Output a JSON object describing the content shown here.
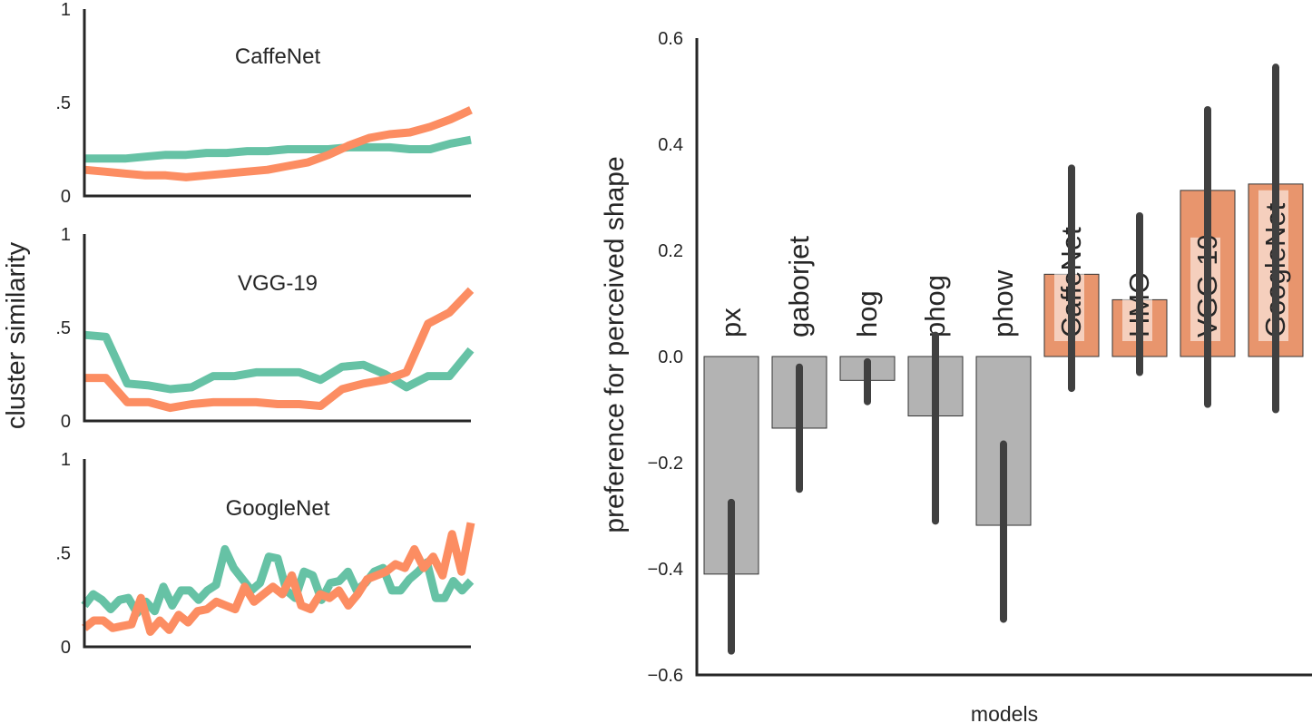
{
  "colors": {
    "green": "#66c2a5",
    "orange": "#fc8d62",
    "gray": "#b3b3b3",
    "barOrange": "#e8956d",
    "errorbar": "#404040",
    "axis": "#262626",
    "labelBox": "#ffffff"
  },
  "left_panel": {
    "ylabel": "cluster similarity"
  },
  "chart_data": [
    {
      "type": "line",
      "title": "CaffeNet",
      "ylim": [
        0,
        1
      ],
      "yticks": [
        "0",
        ".5",
        "1"
      ],
      "series": [
        {
          "color": "green",
          "values": [
            0.2,
            0.2,
            0.2,
            0.21,
            0.22,
            0.22,
            0.23,
            0.23,
            0.24,
            0.24,
            0.25,
            0.25,
            0.25,
            0.26,
            0.26,
            0.26,
            0.25,
            0.25,
            0.28,
            0.3
          ]
        },
        {
          "color": "orange",
          "values": [
            0.14,
            0.13,
            0.12,
            0.11,
            0.11,
            0.1,
            0.11,
            0.12,
            0.13,
            0.14,
            0.16,
            0.18,
            0.22,
            0.27,
            0.31,
            0.33,
            0.34,
            0.37,
            0.41,
            0.46
          ]
        }
      ]
    },
    {
      "type": "line",
      "title": "VGG-19",
      "ylim": [
        0,
        1
      ],
      "yticks": [
        "0",
        ".5",
        "1"
      ],
      "series": [
        {
          "color": "green",
          "values": [
            0.46,
            0.45,
            0.2,
            0.19,
            0.17,
            0.18,
            0.24,
            0.24,
            0.26,
            0.26,
            0.26,
            0.22,
            0.29,
            0.3,
            0.25,
            0.18,
            0.24,
            0.24,
            0.38
          ]
        },
        {
          "color": "orange",
          "values": [
            0.23,
            0.23,
            0.1,
            0.1,
            0.07,
            0.09,
            0.1,
            0.1,
            0.1,
            0.09,
            0.09,
            0.08,
            0.17,
            0.2,
            0.22,
            0.26,
            0.52,
            0.58,
            0.7
          ]
        }
      ]
    },
    {
      "type": "line",
      "title": "GoogleNet",
      "ylim": [
        0,
        1
      ],
      "yticks": [
        "0",
        ".5",
        "1"
      ],
      "series": [
        {
          "color": "green",
          "values": [
            0.22,
            0.28,
            0.25,
            0.2,
            0.25,
            0.26,
            0.18,
            0.24,
            0.19,
            0.32,
            0.22,
            0.3,
            0.3,
            0.25,
            0.3,
            0.33,
            0.52,
            0.42,
            0.36,
            0.3,
            0.34,
            0.48,
            0.47,
            0.3,
            0.26,
            0.4,
            0.38,
            0.25,
            0.34,
            0.35,
            0.4,
            0.3,
            0.34,
            0.4,
            0.42,
            0.3,
            0.3,
            0.36,
            0.4,
            0.45,
            0.26,
            0.26,
            0.35,
            0.3,
            0.35
          ]
        },
        {
          "color": "orange",
          "values": [
            0.1,
            0.14,
            0.14,
            0.1,
            0.11,
            0.12,
            0.26,
            0.08,
            0.14,
            0.09,
            0.17,
            0.13,
            0.19,
            0.2,
            0.24,
            0.22,
            0.2,
            0.32,
            0.24,
            0.28,
            0.32,
            0.28,
            0.38,
            0.22,
            0.2,
            0.28,
            0.26,
            0.3,
            0.22,
            0.28,
            0.36,
            0.38,
            0.4,
            0.44,
            0.42,
            0.52,
            0.42,
            0.48,
            0.38,
            0.6,
            0.4,
            0.66
          ]
        }
      ]
    },
    {
      "type": "bar",
      "ylabel": "preference for perceived shape",
      "xlabel": "models",
      "ylim": [
        -0.6,
        0.6
      ],
      "yticks": [
        "−0.6",
        "−0.4",
        "−0.2",
        "0.0",
        "0.2",
        "0.4",
        "0.6"
      ],
      "categories": [
        "px",
        "gaborjet",
        "hog",
        "phog",
        "phow",
        "CaffeNet",
        "HMO",
        "VGG-19",
        "GoogleNet"
      ],
      "values": [
        -0.41,
        -0.135,
        -0.045,
        -0.112,
        -0.318,
        0.155,
        0.107,
        0.313,
        0.325
      ],
      "ci_low": [
        -0.555,
        -0.25,
        -0.085,
        -0.31,
        -0.495,
        -0.06,
        -0.03,
        -0.09,
        -0.1
      ],
      "ci_high": [
        -0.275,
        -0.02,
        -0.01,
        0.04,
        -0.165,
        0.355,
        0.265,
        0.465,
        0.545
      ],
      "highlight": [
        false,
        false,
        false,
        false,
        false,
        true,
        true,
        true,
        true
      ]
    }
  ]
}
